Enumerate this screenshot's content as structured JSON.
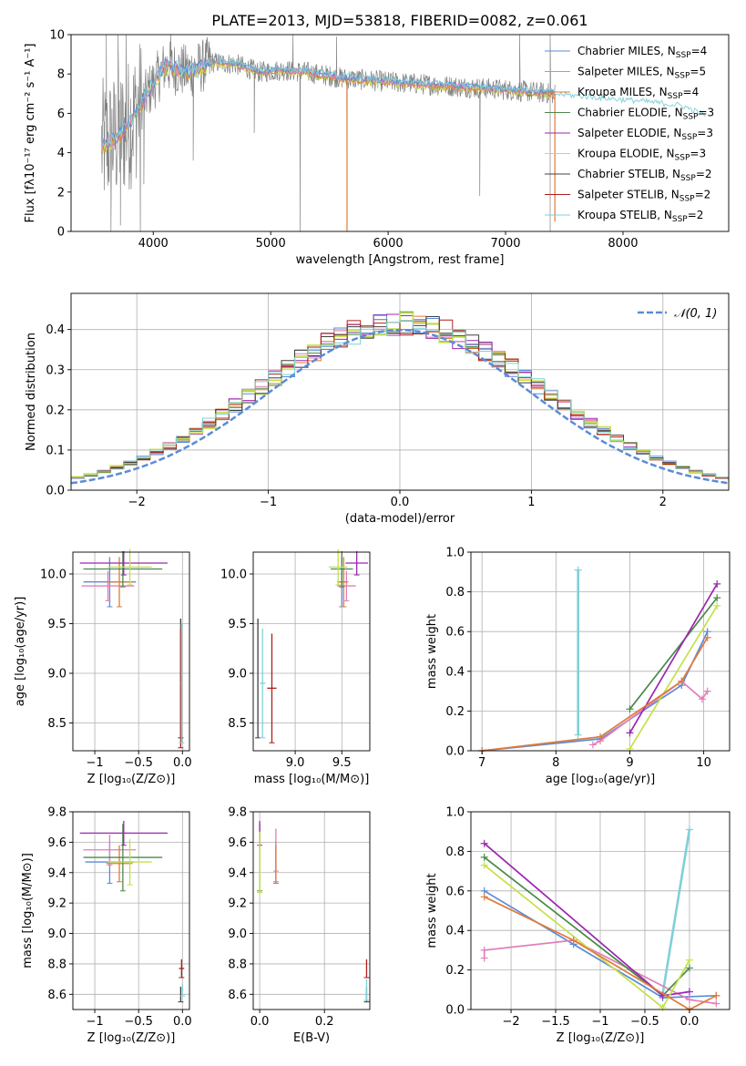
{
  "colors": {
    "chabrier_miles": "#5b8bd8",
    "salpeter_miles": "#e07fb8",
    "kroupa_miles": "#e07b39",
    "chabrier_elodie": "#4a8a4a",
    "salpeter_elodie": "#9c27b0",
    "kroupa_elodie": "#c6e04a",
    "chabrier_stelib": "#404040",
    "salpeter_stelib": "#b01e1e",
    "kroupa_stelib": "#7fd0d8",
    "data": "#808080",
    "gauss": "#5b8bd8"
  },
  "chart_data": [
    {
      "id": "spectrum",
      "type": "line",
      "title": "PLATE=2013, MJD=53818, FIBERID=0082, z=0.061",
      "xlabel": "wavelength [Angstrom, rest frame]",
      "ylabel": "Flux [fλ10⁻¹⁷ erg cm⁻² s⁻¹ A⁻¹]",
      "xlim": [
        3300,
        8900
      ],
      "ylim": [
        0,
        10
      ],
      "xticks": [
        4000,
        5000,
        6000,
        7000,
        8000
      ],
      "yticks": [
        0,
        2,
        4,
        6,
        8,
        10
      ],
      "legend_placement": "top-right",
      "legend": [
        {
          "base": "Chabrier MILES, N",
          "sub": "SSP",
          "tail": "=4",
          "color_key": "chabrier_miles"
        },
        {
          "base": "Salpeter MILES, N",
          "sub": "SSP",
          "tail": "=5",
          "color_key": "salpeter_miles"
        },
        {
          "base": "Kroupa MILES, N",
          "sub": "SSP",
          "tail": "=4",
          "color_key": "kroupa_miles"
        },
        {
          "base": "Chabrier ELODIE, N",
          "sub": "SSP",
          "tail": "=3",
          "color_key": "chabrier_elodie"
        },
        {
          "base": "Salpeter ELODIE, N",
          "sub": "SSP",
          "tail": "=3",
          "color_key": "salpeter_elodie"
        },
        {
          "base": "Kroupa ELODIE, N",
          "sub": "SSP",
          "tail": "=3",
          "color_key": "kroupa_elodie"
        },
        {
          "base": "Chabrier STELIB, N",
          "sub": "SSP",
          "tail": "=2",
          "color_key": "chabrier_stelib"
        },
        {
          "base": "Salpeter STELIB, N",
          "sub": "SSP",
          "tail": "=2",
          "color_key": "salpeter_stelib"
        },
        {
          "base": "Kroupa STELIB, N",
          "sub": "SSP",
          "tail": "=2",
          "color_key": "kroupa_stelib"
        }
      ],
      "model_knots": {
        "x": [
          3560,
          3700,
          3800,
          3950,
          4100,
          4300,
          4500,
          4700,
          4900,
          5100,
          5300,
          5600,
          6000,
          6500,
          7000,
          7400
        ],
        "y": [
          4.3,
          4.8,
          5.5,
          7.0,
          8.4,
          8.1,
          8.6,
          8.5,
          8.1,
          8.2,
          8.1,
          7.8,
          7.6,
          7.4,
          7.2,
          7.0
        ]
      },
      "stelib_knots": {
        "x": [
          7400,
          7800,
          8200,
          8500,
          8700
        ],
        "y": [
          6.9,
          6.7,
          6.5,
          6.3,
          5.8
        ]
      },
      "data_range": [
        3560,
        7420
      ],
      "dips": [
        {
          "x": 3640,
          "y": 0.0
        },
        {
          "x": 3720,
          "y": 0.3
        },
        {
          "x": 3890,
          "y": 0.0
        },
        {
          "x": 3920,
          "y": 2.4
        },
        {
          "x": 4340,
          "y": 3.6
        },
        {
          "x": 4860,
          "y": 5.0
        },
        {
          "x": 5250,
          "y": 0.0
        },
        {
          "x": 5650,
          "y": 0.0
        },
        {
          "x": 6780,
          "y": 1.8
        },
        {
          "x": 7380,
          "y": 0.0
        }
      ],
      "spikes": [
        {
          "x": 3600,
          "y": 10.0
        },
        {
          "x": 3700,
          "y": 10.0
        },
        {
          "x": 3770,
          "y": 10.0
        },
        {
          "x": 4150,
          "y": 10.0
        },
        {
          "x": 5190,
          "y": 10.0
        },
        {
          "x": 5560,
          "y": 9.9
        },
        {
          "x": 7120,
          "y": 10.0
        },
        {
          "x": 7380,
          "y": 10.0
        }
      ]
    },
    {
      "id": "residuals",
      "type": "bar",
      "xlabel": "(data-model)/error",
      "ylabel": "Normed distribution",
      "xlim": [
        -2.5,
        2.5
      ],
      "ylim": [
        0,
        0.49
      ],
      "xticks": [
        -2,
        -1,
        0,
        1,
        2
      ],
      "yticks": [
        0.0,
        0.1,
        0.2,
        0.3,
        0.4
      ],
      "grid": true,
      "legend_placement": "top-right",
      "legend_text": "𝒩(0, 1)",
      "bin_width": 0.1,
      "series_keys": [
        "chabrier_miles",
        "salpeter_miles",
        "kroupa_miles",
        "chabrier_elodie",
        "salpeter_elodie",
        "kroupa_elodie",
        "chabrier_stelib",
        "salpeter_stelib",
        "kroupa_stelib"
      ]
    },
    {
      "id": "age_vs_Z",
      "type": "scatter",
      "xlabel": "Z [log₁₀(Z/Z⊙)]",
      "ylabel": "age  [log₁₀(age/yr)]",
      "xlim": [
        -1.25,
        0.08
      ],
      "ylim": [
        8.22,
        10.22
      ],
      "xticks": [
        -1.0,
        -0.5,
        0.0
      ],
      "yticks": [
        8.5,
        9.0,
        9.5,
        10.0
      ],
      "grid": true,
      "points": [
        {
          "key": "chabrier_miles",
          "x": -0.83,
          "y": 9.92,
          "xerr": 0.3,
          "yerr": 0.25
        },
        {
          "key": "salpeter_miles",
          "x": -0.85,
          "y": 9.88,
          "xerr": 0.3,
          "yerr": 0.15
        },
        {
          "key": "kroupa_miles",
          "x": -0.72,
          "y": 9.92,
          "xerr": 0.15,
          "yerr": 0.25
        },
        {
          "key": "chabrier_elodie",
          "x": -0.68,
          "y": 10.05,
          "xerr": 0.45,
          "yerr": 0.18
        },
        {
          "key": "salpeter_elodie",
          "x": -0.67,
          "y": 10.11,
          "xerr": 0.5,
          "yerr": 0.12
        },
        {
          "key": "kroupa_elodie",
          "x": -0.6,
          "y": 10.07,
          "xerr": 0.25,
          "yerr": 0.18
        },
        {
          "key": "chabrier_stelib",
          "x": -0.02,
          "y": 8.95,
          "xerr": 0.0,
          "yerr": 0.6
        },
        {
          "key": "salpeter_stelib",
          "x": -0.02,
          "y": 8.85,
          "xerr": 0.0,
          "yerr": 0.6
        },
        {
          "key": "kroupa_stelib",
          "x": -0.01,
          "y": 8.9,
          "xerr": 0.01,
          "yerr": 0.6
        }
      ]
    },
    {
      "id": "age_vs_mass",
      "type": "scatter",
      "xlabel": "mass [log₁₀(M/M⊙)]",
      "xlim": [
        8.55,
        9.8
      ],
      "ylim": [
        8.22,
        10.22
      ],
      "xticks": [
        9.0,
        9.5
      ],
      "yticks": [
        8.5,
        9.0,
        9.5,
        10.0
      ],
      "grid": true,
      "points": [
        {
          "key": "chabrier_miles",
          "x": 9.5,
          "y": 9.92,
          "xerr": 0.05,
          "yerr": 0.25
        },
        {
          "key": "salpeter_miles",
          "x": 9.55,
          "y": 9.88,
          "xerr": 0.1,
          "yerr": 0.15
        },
        {
          "key": "kroupa_miles",
          "x": 9.52,
          "y": 9.92,
          "xerr": 0.05,
          "yerr": 0.25
        },
        {
          "key": "chabrier_elodie",
          "x": 9.5,
          "y": 10.05,
          "xerr": 0.12,
          "yerr": 0.18
        },
        {
          "key": "salpeter_elodie",
          "x": 9.66,
          "y": 10.11,
          "xerr": 0.12,
          "yerr": 0.12
        },
        {
          "key": "kroupa_elodie",
          "x": 9.46,
          "y": 10.07,
          "xerr": 0.1,
          "yerr": 0.18
        },
        {
          "key": "chabrier_stelib",
          "x": 8.6,
          "y": 8.95,
          "xerr": 0.0,
          "yerr": 0.6
        },
        {
          "key": "salpeter_stelib",
          "x": 8.75,
          "y": 8.85,
          "xerr": 0.05,
          "yerr": 0.55
        },
        {
          "key": "kroupa_stelib",
          "x": 8.65,
          "y": 8.9,
          "xerr": 0.03,
          "yerr": 0.55
        }
      ]
    },
    {
      "id": "weight_vs_age",
      "type": "line",
      "xlabel": "age  [log₁₀(age/yr)]",
      "ylabel": "mass weight",
      "xlim": [
        6.85,
        10.35
      ],
      "ylim": [
        0.0,
        1.0
      ],
      "xticks": [
        7,
        8,
        9,
        10
      ],
      "yticks": [
        0.0,
        0.2,
        0.4,
        0.6,
        0.8,
        1.0
      ],
      "grid": true,
      "series": [
        {
          "key": "kroupa_stelib",
          "x": [
            8.3,
            8.3
          ],
          "y": [
            0.08,
            0.91
          ]
        },
        {
          "key": "chabrier_miles",
          "x": [
            7.0,
            8.6,
            9.7,
            10.05
          ],
          "y": [
            0.0,
            0.06,
            0.33,
            0.6
          ]
        },
        {
          "key": "salpeter_miles",
          "x": [
            8.5,
            8.6,
            9.7,
            9.98,
            10.05
          ],
          "y": [
            0.03,
            0.05,
            0.35,
            0.26,
            0.3
          ]
        },
        {
          "key": "chabrier_elodie",
          "x": [
            9.0,
            10.18
          ],
          "y": [
            0.21,
            0.77
          ]
        },
        {
          "key": "salpeter_elodie",
          "x": [
            9.0,
            10.18
          ],
          "y": [
            0.09,
            0.84
          ]
        },
        {
          "key": "kroupa_elodie",
          "x": [
            9.0,
            10.18
          ],
          "y": [
            0.01,
            0.73
          ]
        },
        {
          "key": "kroupa_miles",
          "x": [
            7.0,
            8.6,
            9.7,
            10.05
          ],
          "y": [
            0.0,
            0.07,
            0.35,
            0.57
          ]
        }
      ]
    },
    {
      "id": "mass_vs_Z",
      "type": "scatter",
      "xlabel": "Z [log₁₀(Z/Z⊙)]",
      "ylabel": "mass [log₁₀(M/M⊙)]",
      "xlim": [
        -1.25,
        0.08
      ],
      "ylim": [
        8.5,
        9.8
      ],
      "xticks": [
        -1.0,
        -0.5,
        0.0
      ],
      "yticks": [
        8.6,
        8.8,
        9.0,
        9.2,
        9.4,
        9.6,
        9.8
      ],
      "grid": true,
      "points": [
        {
          "key": "chabrier_miles",
          "x": -0.83,
          "y": 9.47,
          "xerr": 0.28,
          "yerr": 0.14
        },
        {
          "key": "salpeter_miles",
          "x": -0.83,
          "y": 9.55,
          "xerr": 0.3,
          "yerr": 0.1
        },
        {
          "key": "kroupa_miles",
          "x": -0.72,
          "y": 9.46,
          "xerr": 0.15,
          "yerr": 0.12
        },
        {
          "key": "chabrier_elodie",
          "x": -0.68,
          "y": 9.5,
          "xerr": 0.45,
          "yerr": 0.22
        },
        {
          "key": "salpeter_elodie",
          "x": -0.67,
          "y": 9.66,
          "xerr": 0.5,
          "yerr": 0.08
        },
        {
          "key": "kroupa_elodie",
          "x": -0.6,
          "y": 9.47,
          "xerr": 0.25,
          "yerr": 0.15
        },
        {
          "key": "chabrier_stelib",
          "x": -0.02,
          "y": 8.6,
          "xerr": 0.0,
          "yerr": 0.05
        },
        {
          "key": "salpeter_stelib",
          "x": -0.01,
          "y": 8.77,
          "xerr": 0.03,
          "yerr": 0.06
        },
        {
          "key": "kroupa_stelib",
          "x": 0.0,
          "y": 8.63,
          "xerr": 0.01,
          "yerr": 0.04
        }
      ]
    },
    {
      "id": "mass_vs_ebv",
      "type": "scatter",
      "xlabel": "E(B-V)",
      "xlim": [
        -0.02,
        0.34
      ],
      "ylim": [
        8.5,
        9.8
      ],
      "xticks": [
        0.0,
        0.2
      ],
      "yticks": [
        8.6,
        8.8,
        9.0,
        9.2,
        9.4,
        9.6,
        9.8
      ],
      "grid": true,
      "points": [
        {
          "key": "chabrier_miles",
          "x": 0.05,
          "y": 9.47,
          "xerr": 0.0,
          "yerr": 0.14
        },
        {
          "key": "salpeter_miles",
          "x": 0.05,
          "y": 9.55,
          "xerr": 0.0,
          "yerr": 0.14
        },
        {
          "key": "kroupa_miles",
          "x": 0.05,
          "y": 9.46,
          "xerr": 0.0,
          "yerr": 0.12
        },
        {
          "key": "chabrier_elodie",
          "x": 0.0,
          "y": 9.5,
          "xerr": 0.0,
          "yerr": 0.22
        },
        {
          "key": "salpeter_elodie",
          "x": 0.0,
          "y": 9.66,
          "xerr": 0.0,
          "yerr": 0.08
        },
        {
          "key": "kroupa_elodie",
          "x": 0.0,
          "y": 9.47,
          "xerr": 0.0,
          "yerr": 0.2
        },
        {
          "key": "chabrier_stelib",
          "x": 0.33,
          "y": 8.6,
          "xerr": 0.0,
          "yerr": 0.05
        },
        {
          "key": "salpeter_stelib",
          "x": 0.33,
          "y": 8.77,
          "xerr": 0.0,
          "yerr": 0.06
        },
        {
          "key": "kroupa_stelib",
          "x": 0.33,
          "y": 8.63,
          "xerr": 0.0,
          "yerr": 0.07
        }
      ]
    },
    {
      "id": "weight_vs_Z",
      "type": "line",
      "xlabel": "Z [log₁₀(Z/Z⊙)]",
      "ylabel": "mass weight",
      "xlim": [
        -2.45,
        0.45
      ],
      "ylim": [
        0.0,
        1.0
      ],
      "xticks": [
        -2.0,
        -1.5,
        -1.0,
        -0.5,
        0.0
      ],
      "yticks": [
        0.0,
        0.2,
        0.4,
        0.6,
        0.8,
        1.0
      ],
      "grid": true,
      "series": [
        {
          "key": "kroupa_stelib",
          "x": [
            -0.3,
            0.0
          ],
          "y": [
            0.08,
            0.91
          ]
        },
        {
          "key": "chabrier_miles",
          "x": [
            -2.3,
            -1.3,
            -0.3,
            0.3
          ],
          "y": [
            0.6,
            0.33,
            0.06,
            0.07
          ]
        },
        {
          "key": "salpeter_miles",
          "x": [
            -2.3,
            -2.3,
            -1.3,
            0.0,
            0.3
          ],
          "y": [
            0.26,
            0.3,
            0.35,
            0.05,
            0.03
          ]
        },
        {
          "key": "chabrier_elodie",
          "x": [
            -2.3,
            -0.3,
            0.0
          ],
          "y": [
            0.77,
            0.07,
            0.21
          ]
        },
        {
          "key": "salpeter_elodie",
          "x": [
            -2.3,
            -0.3,
            0.0
          ],
          "y": [
            0.84,
            0.07,
            0.09
          ]
        },
        {
          "key": "kroupa_elodie",
          "x": [
            -2.3,
            -0.3,
            0.0
          ],
          "y": [
            0.73,
            0.01,
            0.25
          ]
        },
        {
          "key": "kroupa_miles",
          "x": [
            -2.3,
            -1.3,
            0.0,
            0.3
          ],
          "y": [
            0.57,
            0.35,
            0.0,
            0.07
          ]
        }
      ]
    }
  ]
}
